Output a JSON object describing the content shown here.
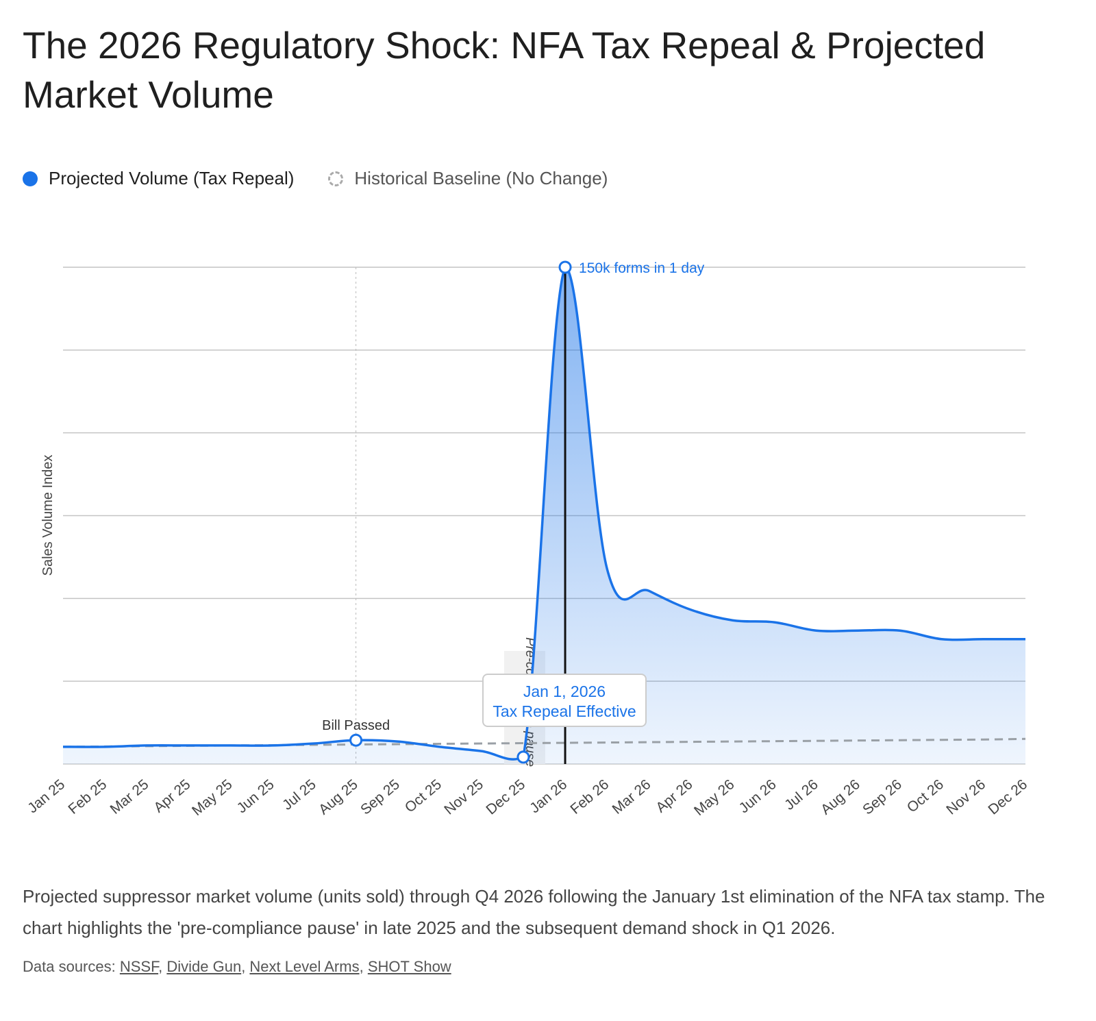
{
  "title": "The 2026 Regulatory Shock: NFA Tax Repeal & Projected Market Volume",
  "chart_data": {
    "type": "area",
    "title": "The 2026 Regulatory Shock: NFA Tax Repeal & Projected Market Volume",
    "ylabel": "Sales Volume Index",
    "xlabel": "",
    "ylim": [
      0,
      150
    ],
    "grid": true,
    "legend": "top-left",
    "categories": [
      "Jan 25",
      "Feb 25",
      "Mar 25",
      "Apr 25",
      "May 25",
      "Jun 25",
      "Jul 25",
      "Aug 25",
      "Sep 25",
      "Oct 25",
      "Nov 25",
      "Dec 25",
      "Jan 26",
      "Feb 26",
      "Mar 26",
      "Apr 26",
      "May 26",
      "Jun 26",
      "Jul 26",
      "Aug 26",
      "Sep 26",
      "Oct 26",
      "Nov 26",
      "Dec 26"
    ],
    "series": [
      {
        "name": "Projected Volume (Tax Repeal)",
        "color": "#1a73e8",
        "values": [
          5.2,
          5.2,
          5.6,
          5.6,
          5.6,
          5.6,
          6.2,
          7.2,
          6.8,
          5.2,
          3.9,
          2.1,
          150,
          59,
          52.3,
          46.6,
          43.4,
          42.8,
          40.3,
          40.3,
          40.3,
          37.7,
          37.7,
          37.7
        ]
      },
      {
        "name": "Historical Baseline (No Change)",
        "color": "#9aa0a6",
        "values": [
          5.2,
          5.3,
          5.4,
          5.5,
          5.6,
          5.7,
          5.8,
          5.9,
          6.0,
          6.1,
          6.2,
          6.3,
          6.4,
          6.5,
          6.6,
          6.7,
          6.8,
          6.9,
          7.0,
          7.1,
          7.2,
          7.3,
          7.4,
          7.6
        ]
      }
    ],
    "annotations": [
      {
        "at": "Aug 25",
        "label": "Bill Passed"
      },
      {
        "at": "Dec 25",
        "label": "Pre-compliance pause"
      },
      {
        "at": "Jan 26",
        "label": "150k forms in 1 day"
      },
      {
        "at": "Jan 26",
        "label": "Jan 1, 2026",
        "sublabel": "Tax Repeal Effective"
      }
    ]
  },
  "caption": "Projected suppressor market volume (units sold) through Q4 2026 following the January 1st elimination of the NFA tax stamp. The chart highlights the 'pre-compliance pause' in late 2025 and the subsequent demand shock in Q1 2026.",
  "sources_label": "Data sources:",
  "sources": [
    "NSSF",
    "Divide Gun",
    "Next Level Arms",
    "SHOT Show"
  ]
}
